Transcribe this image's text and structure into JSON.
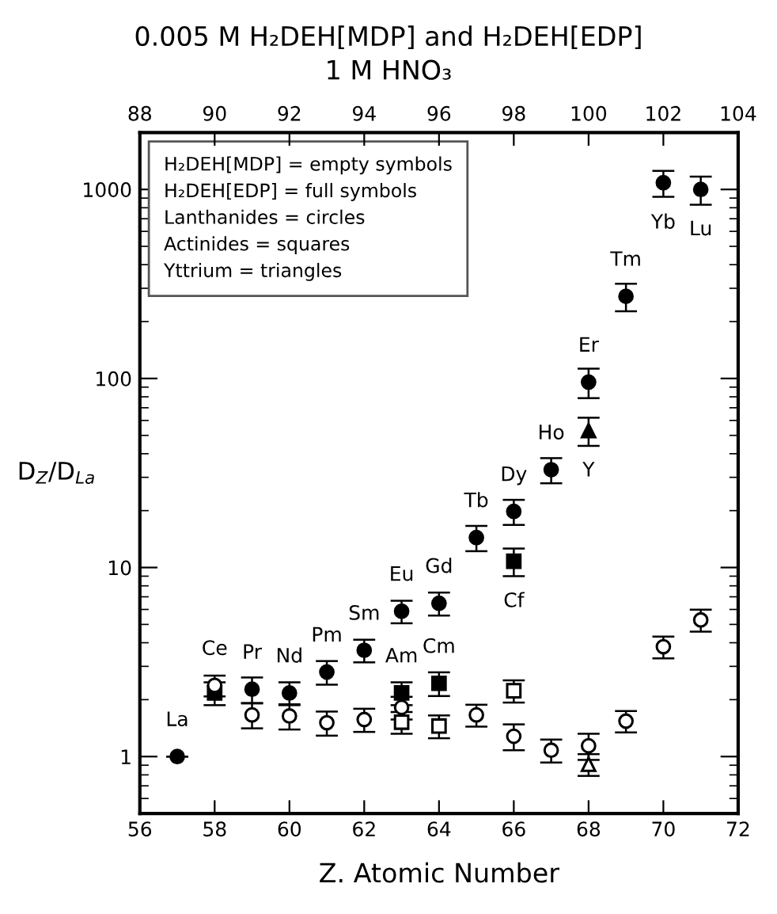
{
  "chart_data": {
    "type": "scatter",
    "title": "0.005 M H₂DEH[MDP] and H₂DEH[EDP]",
    "subtitle": "1 M HNO₃",
    "xlabel": "Z. Atomic Number",
    "ylabel": "D$_{Z}$/D$_{La}$",
    "log": "y",
    "xlim": [
      56,
      72
    ],
    "xticks": [
      56,
      58,
      60,
      62,
      64,
      66,
      68,
      70,
      72
    ],
    "ylim": [
      0.5,
      2000
    ],
    "yticks": [
      1,
      10,
      100,
      1000
    ],
    "x2lim": [
      88,
      104
    ],
    "x2ticks": [
      88,
      90,
      92,
      94,
      96,
      98,
      100,
      102,
      104
    ],
    "grid": false,
    "series": [
      {
        "marker": "circle",
        "color": "#000000",
        "x": [
          57,
          59,
          60,
          61,
          62,
          63,
          64,
          65,
          66,
          67,
          68,
          69,
          70,
          71
        ],
        "values": [
          1.0,
          2.27,
          2.17,
          2.8,
          3.65,
          5.87,
          6.47,
          14.4,
          19.8,
          32.9,
          95.7,
          272,
          1085,
          1000
        ],
        "errors": [
          null,
          0.35,
          0.3,
          0.4,
          0.5,
          0.8,
          0.9,
          2.2,
          3,
          5,
          17,
          45,
          170,
          170
        ]
      },
      {
        "marker": "circle",
        "color": "#ffffff",
        "x": [
          58,
          59,
          60,
          61,
          62,
          63,
          65,
          66,
          67,
          68,
          69,
          70,
          71
        ],
        "values": [
          2.38,
          1.66,
          1.64,
          1.51,
          1.57,
          1.82,
          1.66,
          1.28,
          1.08,
          1.14,
          1.54,
          3.81,
          5.28
        ],
        "errors": [
          0.3,
          0.25,
          0.25,
          0.22,
          0.22,
          0.25,
          0.22,
          0.2,
          0.15,
          0.18,
          0.2,
          0.5,
          0.7
        ]
      },
      {
        "marker": "square",
        "color": "#000000",
        "x": [
          58,
          63,
          64,
          66
        ],
        "values": [
          2.17,
          2.17,
          2.44,
          10.8
        ],
        "errors": [
          0.3,
          0.3,
          0.35,
          1.8
        ]
      },
      {
        "marker": "square",
        "color": "#ffffff",
        "x": [
          63,
          64,
          66
        ],
        "values": [
          1.52,
          1.45,
          2.23
        ],
        "errors": [
          0.2,
          0.2,
          0.3
        ]
      },
      {
        "marker": "triangle",
        "color": "#000000",
        "x": [
          68
        ],
        "values": [
          53
        ],
        "errors": [
          9
        ]
      },
      {
        "marker": "triangle",
        "color": "#ffffff",
        "x": [
          68
        ],
        "values": [
          0.91
        ],
        "errors": [
          0.12
        ]
      }
    ],
    "annotations": [
      {
        "text": "La",
        "x": 57,
        "y": 1.0
      },
      {
        "text": "Ce",
        "x": 58,
        "y": 2.38
      },
      {
        "text": "Pr",
        "x": 59,
        "y": 2.27
      },
      {
        "text": "Nd",
        "x": 60,
        "y": 2.17
      },
      {
        "text": "Pm",
        "x": 61,
        "y": 2.8
      },
      {
        "text": "Sm",
        "x": 62,
        "y": 3.65
      },
      {
        "text": "Eu",
        "x": 63,
        "y": 5.87
      },
      {
        "text": "Am",
        "x": 63,
        "y": 2.17
      },
      {
        "text": "Gd",
        "x": 64,
        "y": 6.47
      },
      {
        "text": "Cm",
        "x": 64,
        "y": 2.44
      },
      {
        "text": "Tb",
        "x": 65,
        "y": 14.4
      },
      {
        "text": "Dy",
        "x": 66,
        "y": 19.8
      },
      {
        "text": "Cf",
        "x": 66,
        "y": 10.8
      },
      {
        "text": "Ho",
        "x": 67,
        "y": 32.9
      },
      {
        "text": "Er",
        "x": 68,
        "y": 95.7
      },
      {
        "text": "Y",
        "x": 68,
        "y": 53
      },
      {
        "text": "Tm",
        "x": 69,
        "y": 272
      },
      {
        "text": "Yb",
        "x": 70,
        "y": 1085
      },
      {
        "text": "Lu",
        "x": 71,
        "y": 1000
      },
      "H₂DEH[MDP] = empty symbols\nH₂DEH[EDP] = full symbols\nLanthanides = circles\nActinides = squares\nYttrium = triangles"
    ]
  }
}
